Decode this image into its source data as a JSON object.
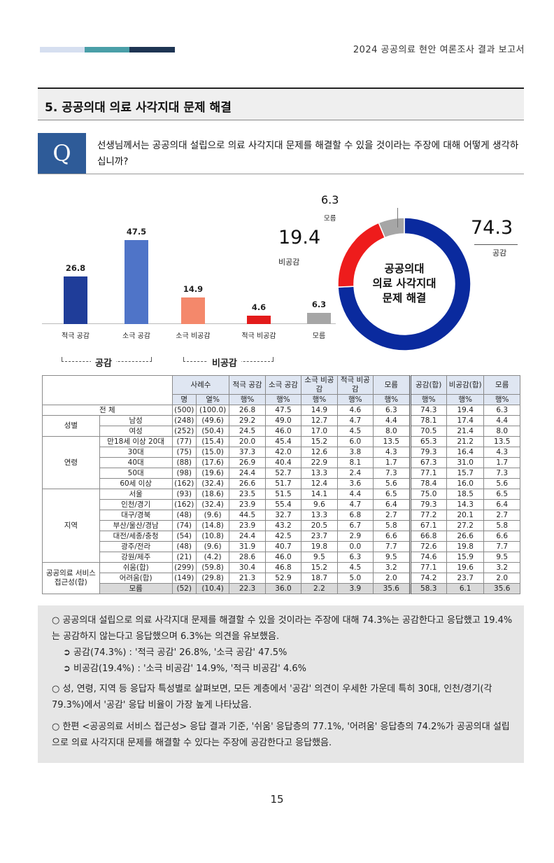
{
  "header": {
    "title": "2024 공공의료 현안 여론조사 결과 보고서",
    "colors": [
      "#d6dff0",
      "#4a9fa8",
      "#1e3553"
    ]
  },
  "section": {
    "title": "5. 공공의대 의료 사각지대 문제 해결"
  },
  "question": {
    "badge": "Q",
    "text": "선생님께서는 공공의대 설립으로 의료 사각지대 문제를 해결할 수 있을 것이라는 주장에 대해 어떻게 생각하십니까?"
  },
  "chart_data": [
    {
      "type": "bar",
      "categories": [
        "적극 공감",
        "소극 공감",
        "소극 비공감",
        "적극 비공감",
        "모름"
      ],
      "values": [
        26.8,
        47.5,
        14.9,
        4.6,
        6.3
      ],
      "colors": [
        "#1f3d99",
        "#4f74c8",
        "#f4886b",
        "#e31b1b",
        "#a6a6a6"
      ],
      "groups": [
        "공감",
        "비공감"
      ]
    },
    {
      "type": "pie",
      "labels": [
        "공감",
        "비공감",
        "모름"
      ],
      "values": [
        74.3,
        19.4,
        6.3
      ],
      "colors": [
        "#0a2a9e",
        "#ee1c1c",
        "#a6a6a6"
      ],
      "center_text": [
        "공공의대",
        "의료 사각지대",
        "문제 해결"
      ]
    }
  ],
  "table": {
    "headers": {
      "sample": "사례수",
      "cols": [
        "적극 공감",
        "소극 공감",
        "소극 비공감",
        "적극 비공감",
        "모름",
        "공감(합)",
        "비공감(합)",
        "모름"
      ],
      "sub_n": "명",
      "sub_pct": "열%",
      "sub_row": "행%"
    },
    "total": {
      "label": "전 체",
      "n": "(500)",
      "pct": "(100.0)",
      "v": [
        "26.8",
        "47.5",
        "14.9",
        "4.6",
        "6.3",
        "74.3",
        "19.4",
        "6.3"
      ]
    },
    "groups": [
      {
        "name": "성별",
        "rows": [
          {
            "label": "남성",
            "n": "(248)",
            "pct": "(49.6)",
            "v": [
              "29.2",
              "49.0",
              "12.7",
              "4.7",
              "4.4",
              "78.1",
              "17.4",
              "4.4"
            ]
          },
          {
            "label": "여성",
            "n": "(252)",
            "pct": "(50.4)",
            "v": [
              "24.5",
              "46.0",
              "17.0",
              "4.5",
              "8.0",
              "70.5",
              "21.4",
              "8.0"
            ]
          }
        ]
      },
      {
        "name": "연령",
        "rows": [
          {
            "label": "만18세 이상 20대",
            "n": "(77)",
            "pct": "(15.4)",
            "v": [
              "20.0",
              "45.4",
              "15.2",
              "6.0",
              "13.5",
              "65.3",
              "21.2",
              "13.5"
            ]
          },
          {
            "label": "30대",
            "n": "(75)",
            "pct": "(15.0)",
            "v": [
              "37.3",
              "42.0",
              "12.6",
              "3.8",
              "4.3",
              "79.3",
              "16.4",
              "4.3"
            ]
          },
          {
            "label": "40대",
            "n": "(88)",
            "pct": "(17.6)",
            "v": [
              "26.9",
              "40.4",
              "22.9",
              "8.1",
              "1.7",
              "67.3",
              "31.0",
              "1.7"
            ]
          },
          {
            "label": "50대",
            "n": "(98)",
            "pct": "(19.6)",
            "v": [
              "24.4",
              "52.7",
              "13.3",
              "2.4",
              "7.3",
              "77.1",
              "15.7",
              "7.3"
            ]
          },
          {
            "label": "60세 이상",
            "n": "(162)",
            "pct": "(32.4)",
            "v": [
              "26.6",
              "51.7",
              "12.4",
              "3.6",
              "5.6",
              "78.4",
              "16.0",
              "5.6"
            ]
          }
        ]
      },
      {
        "name": "지역",
        "rows": [
          {
            "label": "서울",
            "n": "(93)",
            "pct": "(18.6)",
            "v": [
              "23.5",
              "51.5",
              "14.1",
              "4.4",
              "6.5",
              "75.0",
              "18.5",
              "6.5"
            ]
          },
          {
            "label": "인천/경기",
            "n": "(162)",
            "pct": "(32.4)",
            "v": [
              "23.9",
              "55.4",
              "9.6",
              "4.7",
              "6.4",
              "79.3",
              "14.3",
              "6.4"
            ]
          },
          {
            "label": "대구/경북",
            "n": "(48)",
            "pct": "(9.6)",
            "v": [
              "44.5",
              "32.7",
              "13.3",
              "6.8",
              "2.7",
              "77.2",
              "20.1",
              "2.7"
            ]
          },
          {
            "label": "부산/울산/경남",
            "n": "(74)",
            "pct": "(14.8)",
            "v": [
              "23.9",
              "43.2",
              "20.5",
              "6.7",
              "5.8",
              "67.1",
              "27.2",
              "5.8"
            ]
          },
          {
            "label": "대전/세종/충청",
            "n": "(54)",
            "pct": "(10.8)",
            "v": [
              "24.4",
              "42.5",
              "23.7",
              "2.9",
              "6.6",
              "66.8",
              "26.6",
              "6.6"
            ]
          },
          {
            "label": "광주/전라",
            "n": "(48)",
            "pct": "(9.6)",
            "v": [
              "31.9",
              "40.7",
              "19.8",
              "0.0",
              "7.7",
              "72.6",
              "19.8",
              "7.7"
            ]
          },
          {
            "label": "강원/제주",
            "n": "(21)",
            "pct": "(4.2)",
            "v": [
              "28.6",
              "46.0",
              "9.5",
              "6.3",
              "9.5",
              "74.6",
              "15.9",
              "9.5"
            ]
          }
        ]
      },
      {
        "name": "공공의료 서비스 접근성(합)",
        "rows": [
          {
            "label": "쉬움(합)",
            "n": "(299)",
            "pct": "(59.8)",
            "v": [
              "30.4",
              "46.8",
              "15.2",
              "4.5",
              "3.2",
              "77.1",
              "19.6",
              "3.2"
            ]
          },
          {
            "label": "어려움(합)",
            "n": "(149)",
            "pct": "(29.8)",
            "v": [
              "21.3",
              "52.9",
              "18.7",
              "5.0",
              "2.0",
              "74.2",
              "23.7",
              "2.0"
            ]
          },
          {
            "label": "모름",
            "n": "(52)",
            "pct": "(10.4)",
            "v": [
              "22.3",
              "36.0",
              "2.2",
              "3.9",
              "35.6",
              "58.3",
              "6.1",
              "35.6"
            ]
          }
        ]
      }
    ]
  },
  "summary": {
    "p1": "○ 공공의대 설립으로 의료 사각지대 문제를 해결할 수 있을 것이라는 주장에 대해 74.3%는 공감한다고 응답했고 19.4%는 공감하지 않는다고 응답했으며 6.3%는 의견을 유보했음.",
    "b1": "➲ 공감(74.3%) : '적극 공감' 26.8%, '소극 공감' 47.5%",
    "b2": "➲ 비공감(19.4%) : '소극 비공감' 14.9%, '적극 비공감' 4.6%",
    "p2": "○ 성, 연령, 지역 등 응답자 특성별로 살펴보면, 모든 계층에서 '공감' 의견이 우세한 가운데 특히 30대, 인천/경기(각 79.3%)에서 '공감' 응답 비율이 가장 높게 나타났음.",
    "p3": "○ 한편 <공공의료 서비스 접근성> 응답 결과 기준, '쉬움' 응답층의 77.1%, '어려움' 응답층의 74.2%가 공공의대 설립으로 의료 사각지대 문제를 해결할 수 있다는 주장에 공감한다고 응답했음."
  },
  "page_number": "15"
}
